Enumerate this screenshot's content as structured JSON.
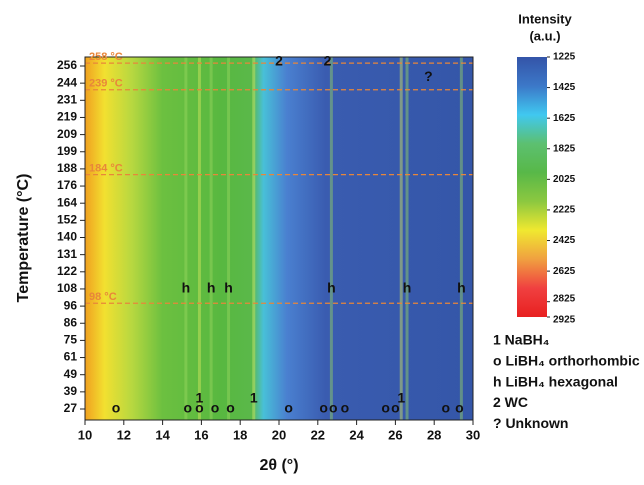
{
  "chart_data": {
    "type": "heatmap",
    "x_label": "2θ (°)",
    "y_label": "Temperature (°C)",
    "xlim": [
      10,
      30
    ],
    "xticks": [
      10,
      12,
      14,
      16,
      18,
      20,
      22,
      24,
      26,
      28,
      30
    ],
    "yticks": [
      27,
      39,
      49,
      61,
      75,
      86,
      96,
      108,
      122,
      131,
      140,
      152,
      164,
      176,
      188,
      199,
      209,
      219,
      231,
      244,
      256
    ],
    "field_colors": [
      "#f0a020",
      "#f2e030",
      "#b8d840",
      "#6cc040",
      "#58b840",
      "#5ab84a",
      "#48c0d8",
      "#4a80d0",
      "#3a5cb0",
      "#3456a8"
    ],
    "colorbar": {
      "title": [
        "Intensity",
        "(a.u.)"
      ],
      "lim": [
        1225,
        2925
      ],
      "ticks": [
        1225,
        1425,
        1625,
        1825,
        2025,
        2225,
        2425,
        2625,
        2825,
        2925
      ],
      "colors": [
        "#3454a8",
        "#3c78c8",
        "#40c8f0",
        "#5cc070",
        "#58b848",
        "#8cc840",
        "#f0e830",
        "#f0a040",
        "#f04040",
        "#e82020"
      ]
    },
    "annotations": [
      {
        "value": 98,
        "label": "98 °C"
      },
      {
        "value": 184,
        "label": "184 °C"
      },
      {
        "value": 239,
        "label": "239 °C"
      },
      {
        "value": 258,
        "label": "258 °C"
      }
    ],
    "annotation_color": "#e8863a",
    "markers": [
      {
        "text": "o",
        "x": 11.6,
        "y": 27
      },
      {
        "text": "o",
        "x": 15.3,
        "y": 27
      },
      {
        "text": "o",
        "x": 15.9,
        "y": 27
      },
      {
        "text": "o",
        "x": 16.7,
        "y": 27
      },
      {
        "text": "o",
        "x": 17.5,
        "y": 27
      },
      {
        "text": "o",
        "x": 20.5,
        "y": 27
      },
      {
        "text": "o",
        "x": 22.3,
        "y": 27
      },
      {
        "text": "o",
        "x": 22.8,
        "y": 27
      },
      {
        "text": "o",
        "x": 23.4,
        "y": 27
      },
      {
        "text": "o",
        "x": 25.5,
        "y": 27
      },
      {
        "text": "o",
        "x": 26.0,
        "y": 27
      },
      {
        "text": "o",
        "x": 28.6,
        "y": 27
      },
      {
        "text": "o",
        "x": 29.3,
        "y": 27
      },
      {
        "text": "1",
        "x": 15.9,
        "y": 34
      },
      {
        "text": "1",
        "x": 18.7,
        "y": 34
      },
      {
        "text": "1",
        "x": 26.3,
        "y": 34
      },
      {
        "text": "h",
        "x": 15.2,
        "y": 108
      },
      {
        "text": "h",
        "x": 16.5,
        "y": 108
      },
      {
        "text": "h",
        "x": 17.4,
        "y": 108
      },
      {
        "text": "h",
        "x": 22.7,
        "y": 108
      },
      {
        "text": "h",
        "x": 26.6,
        "y": 108
      },
      {
        "text": "h",
        "x": 29.4,
        "y": 108
      },
      {
        "text": "2",
        "x": 20.0,
        "y": 259
      },
      {
        "text": "2",
        "x": 22.5,
        "y": 259
      },
      {
        "text": "?",
        "x": 27.7,
        "y": 248
      }
    ],
    "legend": [
      "1 NaBH₄",
      "o LiBH₄ orthorhombic",
      "h LiBH₄ hexagonal",
      "2 WC",
      "? Unknown"
    ]
  }
}
